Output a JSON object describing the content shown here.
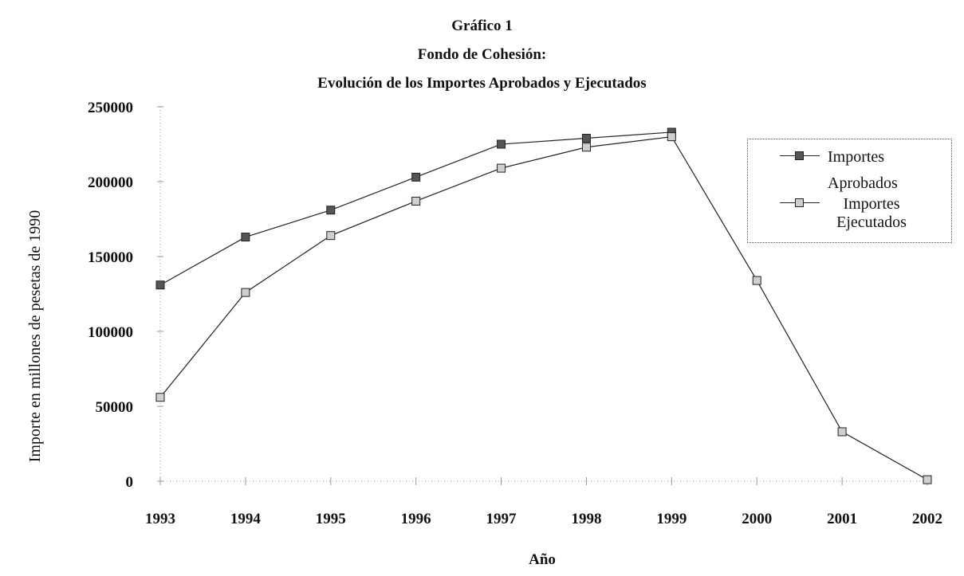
{
  "header": {
    "line1": "Gráfico 1",
    "line2": "Fondo de Cohesión:",
    "line3": "Evolución de los Importes Aprobados y Ejecutados"
  },
  "colors": {
    "aprobados_marker": "#555555",
    "ejecutados_marker": "#cfcfcf",
    "line": "#222222",
    "gridline": "#999999"
  },
  "chart_data": {
    "type": "line",
    "title": "Gráfico 1 Fondo de Cohesión: Evolución de los Importes Aprobados y Ejecutados",
    "xlabel": "Año",
    "ylabel": "Importe en millones de pesetas de 1990",
    "categories": [
      "1993",
      "1994",
      "1995",
      "1996",
      "1997",
      "1998",
      "1999",
      "2000",
      "2001",
      "2002"
    ],
    "ylim": [
      0,
      250000
    ],
    "yticks": [
      "0",
      "50000",
      "100000",
      "150000",
      "200000",
      "250000"
    ],
    "grid": false,
    "legend_position": "right",
    "series": [
      {
        "name": "Importes Aprobados",
        "legend_lines": [
          "Importes",
          "Aprobados"
        ],
        "marker": "dark-square",
        "values": [
          131000,
          163000,
          181000,
          203000,
          225000,
          229000,
          233000,
          null,
          null,
          null
        ]
      },
      {
        "name": "Importes Ejecutados",
        "legend_lines": [
          "Importes",
          "Ejecutados"
        ],
        "marker": "light-square",
        "values": [
          56000,
          126000,
          164000,
          187000,
          209000,
          223000,
          230000,
          134000,
          33000,
          1000
        ]
      }
    ]
  }
}
